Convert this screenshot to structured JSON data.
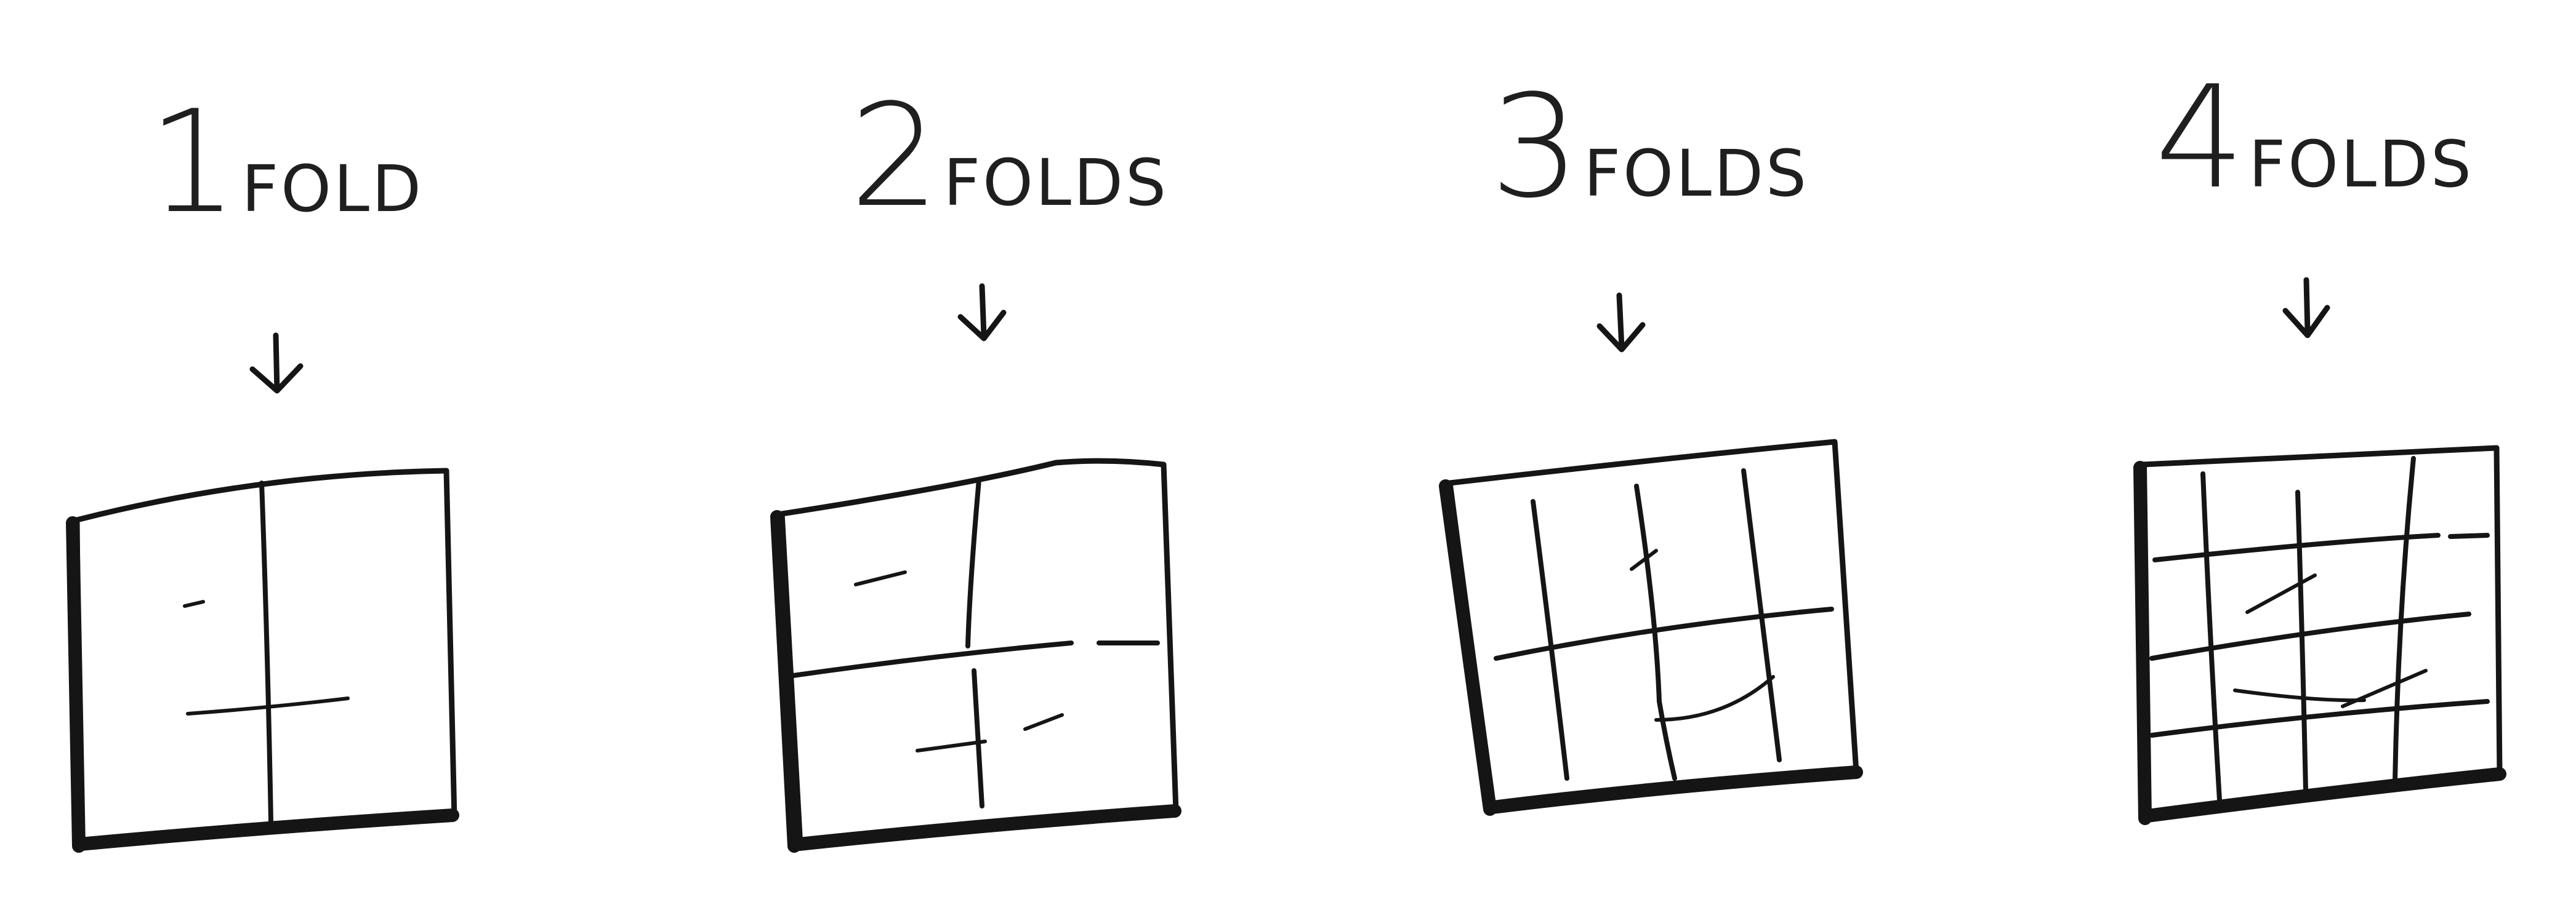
{
  "figure": {
    "panels": [
      {
        "number": "1",
        "word": "FOLD"
      },
      {
        "number": "2",
        "word": "FOLDS"
      },
      {
        "number": "3",
        "word": "FOLDS"
      },
      {
        "number": "4",
        "word": "FOLDS"
      }
    ]
  },
  "colors": {
    "ink": "#151515",
    "paper": "#ffffff"
  }
}
